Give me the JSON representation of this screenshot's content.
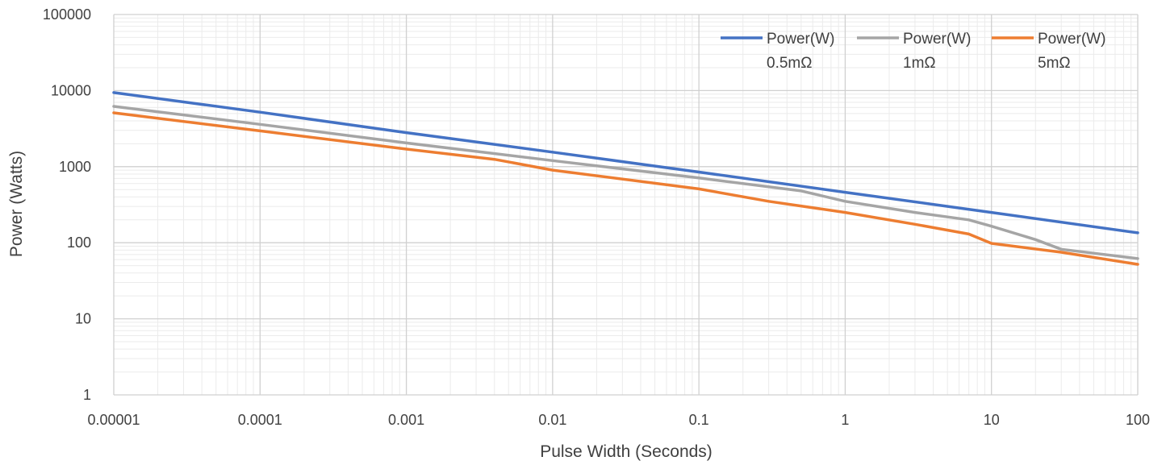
{
  "chart_data": {
    "type": "line",
    "title": "",
    "xlabel": "Pulse Width (Seconds)",
    "ylabel": "Power (Watts)",
    "x_scale": "log",
    "y_scale": "log",
    "xlim": [
      1e-05,
      100
    ],
    "ylim": [
      1,
      100000
    ],
    "x_ticks": [
      "0.00001",
      "0.0001",
      "0.001",
      "0.01",
      "0.1",
      "1",
      "10",
      "100"
    ],
    "y_ticks": [
      "1",
      "10",
      "100",
      "1000",
      "10000",
      "100000"
    ],
    "grid": true,
    "minor_grid": true,
    "legend_position": "top-right",
    "series": [
      {
        "name_lines": [
          "Power(W)",
          "0.5mΩ"
        ],
        "color": "#4472C4",
        "points": [
          [
            1e-05,
            9400
          ],
          [
            0.0001,
            5200
          ],
          [
            0.001,
            2800
          ],
          [
            0.01,
            1550
          ],
          [
            0.1,
            850
          ],
          [
            1,
            460
          ],
          [
            10,
            250
          ],
          [
            100,
            135
          ]
        ]
      },
      {
        "name_lines": [
          "Power(W)",
          "1mΩ"
        ],
        "color": "#A5A5A5",
        "points": [
          [
            1e-05,
            6200
          ],
          [
            0.0001,
            3600
          ],
          [
            0.001,
            2050
          ],
          [
            0.01,
            1200
          ],
          [
            0.1,
            710
          ],
          [
            0.5,
            480
          ],
          [
            1,
            350
          ],
          [
            3,
            250
          ],
          [
            7,
            200
          ],
          [
            10,
            165
          ],
          [
            20,
            110
          ],
          [
            30,
            82
          ],
          [
            100,
            62
          ]
        ]
      },
      {
        "name_lines": [
          "Power(W)",
          "5mΩ"
        ],
        "color": "#ED7D31",
        "points": [
          [
            1e-05,
            5100
          ],
          [
            0.0001,
            2950
          ],
          [
            0.001,
            1700
          ],
          [
            0.004,
            1250
          ],
          [
            0.01,
            900
          ],
          [
            0.1,
            510
          ],
          [
            0.3,
            350
          ],
          [
            1,
            250
          ],
          [
            3,
            175
          ],
          [
            7,
            130
          ],
          [
            10,
            98
          ],
          [
            30,
            75
          ],
          [
            100,
            52
          ]
        ]
      }
    ]
  }
}
